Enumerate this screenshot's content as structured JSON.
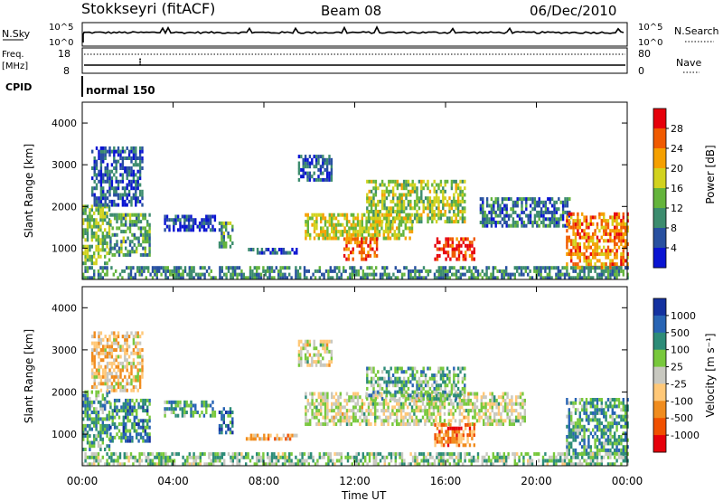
{
  "header": {
    "station": "Stokkseyri (fitACF)",
    "beam": "Beam 08",
    "date": "06/Dec/2010"
  },
  "top_panels": {
    "nsky_label": "N.Sky",
    "nsky_ticks": [
      "10^5",
      "10^0"
    ],
    "nsearch_label": "N.Search",
    "nsearch_ticks": [
      "10^5",
      "10^0"
    ],
    "freq_label": "Freq.",
    "freq_unit": "[MHz]",
    "freq_ticks": [
      "18",
      "8"
    ],
    "nave_label": "Nave",
    "nave_ticks": [
      "80",
      "0"
    ],
    "cpid_label": "CPID",
    "cpid_value": "normal 150"
  },
  "chart_data": [
    {
      "type": "heatmap",
      "panel": "power",
      "ylabel": "Slant Range [km]",
      "xlabel": "",
      "ylim": [
        250,
        4500
      ],
      "yticks": [
        "4000",
        "3000",
        "2000",
        "1000"
      ],
      "xticks": [
        "00:00",
        "04:00",
        "08:00",
        "12:00",
        "16:00",
        "20:00",
        "00:00"
      ],
      "colorbar": {
        "label": "Power [dB]",
        "ticks": [
          "28",
          "24",
          "20",
          "16",
          "12",
          "8",
          "4"
        ],
        "colors": [
          "#e6000b",
          "#f05a00",
          "#f5a000",
          "#d2d21e",
          "#64b43c",
          "#3c8c6e",
          "#2850a0",
          "#0a14d2"
        ]
      },
      "regions": [
        {
          "t": [
            0.0,
            1.2
          ],
          "r": [
            600,
            2000
          ],
          "level": 0.45
        },
        {
          "t": [
            0.4,
            2.6
          ],
          "r": [
            2000,
            3400
          ],
          "level": 0.2
        },
        {
          "t": [
            1.2,
            3.0
          ],
          "r": [
            800,
            1800
          ],
          "level": 0.35
        },
        {
          "t": [
            3.6,
            5.8
          ],
          "r": [
            1400,
            1800
          ],
          "level": 0.15
        },
        {
          "t": [
            6.0,
            6.6
          ],
          "r": [
            1000,
            1600
          ],
          "level": 0.35
        },
        {
          "t": [
            7.2,
            9.4
          ],
          "r": [
            850,
            1000
          ],
          "level": 0.15
        },
        {
          "t": [
            9.5,
            11.0
          ],
          "r": [
            2600,
            3200
          ],
          "level": 0.2
        },
        {
          "t": [
            9.8,
            14.5
          ],
          "r": [
            1200,
            1800
          ],
          "level": 0.55
        },
        {
          "t": [
            11.5,
            13.0
          ],
          "r": [
            700,
            1200
          ],
          "level": 0.8
        },
        {
          "t": [
            12.5,
            16.8
          ],
          "r": [
            1600,
            2600
          ],
          "level": 0.5
        },
        {
          "t": [
            15.5,
            17.3
          ],
          "r": [
            700,
            1200
          ],
          "level": 0.9
        },
        {
          "t": [
            17.5,
            21.5
          ],
          "r": [
            1500,
            2200
          ],
          "level": 0.25
        },
        {
          "t": [
            21.3,
            24.0
          ],
          "r": [
            500,
            1800
          ],
          "level": 0.75
        },
        {
          "t": [
            0.0,
            24.0
          ],
          "r": [
            250,
            500
          ],
          "level": 0.3
        }
      ]
    },
    {
      "type": "heatmap",
      "panel": "velocity",
      "ylabel": "Slant Range [km]",
      "xlabel": "Time UT",
      "ylim": [
        250,
        4500
      ],
      "yticks": [
        "4000",
        "3000",
        "2000",
        "1000"
      ],
      "xticks": [
        "00:00",
        "04:00",
        "08:00",
        "12:00",
        "16:00",
        "20:00",
        "00:00"
      ],
      "colorbar": {
        "label": "Velocity [m s⁻¹]",
        "ticks": [
          "1000",
          "500",
          "100",
          "25",
          "-25",
          "-100",
          "-500",
          "-1000"
        ],
        "colors": [
          "#1432a0",
          "#2864b4",
          "#2d8c78",
          "#78c83c",
          "#c8c8c0",
          "#ffc878",
          "#f08c1e",
          "#f05000",
          "#e6000b"
        ]
      },
      "regions": [
        {
          "t": [
            0.0,
            1.2
          ],
          "r": [
            600,
            2000
          ],
          "level": 0.3
        },
        {
          "t": [
            0.4,
            2.6
          ],
          "r": [
            2000,
            3400
          ],
          "level": 0.6
        },
        {
          "t": [
            1.2,
            3.0
          ],
          "r": [
            800,
            1800
          ],
          "level": 0.25
        },
        {
          "t": [
            3.6,
            5.8
          ],
          "r": [
            1400,
            1800
          ],
          "level": 0.3
        },
        {
          "t": [
            6.0,
            6.6
          ],
          "r": [
            1000,
            1600
          ],
          "level": 0.2
        },
        {
          "t": [
            7.2,
            9.4
          ],
          "r": [
            850,
            1000
          ],
          "level": 0.65
        },
        {
          "t": [
            9.5,
            11.0
          ],
          "r": [
            2600,
            3200
          ],
          "level": 0.5
        },
        {
          "t": [
            9.8,
            19.5
          ],
          "r": [
            1200,
            2000
          ],
          "level": 0.5
        },
        {
          "t": [
            12.5,
            16.8
          ],
          "r": [
            1800,
            2600
          ],
          "level": 0.35
        },
        {
          "t": [
            15.5,
            17.3
          ],
          "r": [
            700,
            1200
          ],
          "level": 0.75
        },
        {
          "t": [
            21.3,
            24.0
          ],
          "r": [
            500,
            1800
          ],
          "level": 0.3
        },
        {
          "t": [
            0.0,
            24.0
          ],
          "r": [
            250,
            500
          ],
          "level": 0.4
        }
      ]
    }
  ]
}
